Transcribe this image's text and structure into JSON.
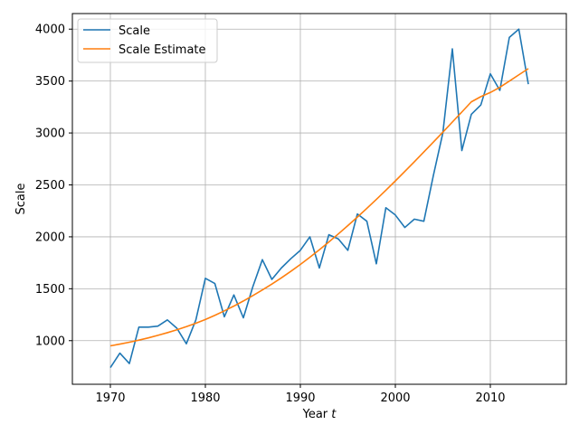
{
  "chart_data": {
    "type": "line",
    "xlabel": "Year",
    "xlabel_var": "t",
    "ylabel": "Scale",
    "xlim": [
      1966,
      2018
    ],
    "ylim": [
      580,
      4150
    ],
    "xticks": [
      1970,
      1980,
      1990,
      2000,
      2010
    ],
    "yticks": [
      1000,
      1500,
      2000,
      2500,
      3000,
      3500,
      4000
    ],
    "grid": true,
    "legend_position": "upper-left",
    "x": [
      1970,
      1971,
      1972,
      1973,
      1974,
      1975,
      1976,
      1977,
      1978,
      1979,
      1980,
      1981,
      1982,
      1983,
      1984,
      1985,
      1986,
      1987,
      1988,
      1989,
      1990,
      1991,
      1992,
      1993,
      1994,
      1995,
      1996,
      1997,
      1998,
      1999,
      2000,
      2001,
      2002,
      2003,
      2004,
      2005,
      2006,
      2007,
      2008,
      2009,
      2010,
      2011,
      2012,
      2013,
      2014
    ],
    "series": [
      {
        "name": "Scale",
        "color": "#1f77b4",
        "values": [
          740,
          880,
          780,
          1130,
          1130,
          1140,
          1200,
          1120,
          970,
          1200,
          1600,
          1550,
          1230,
          1440,
          1220,
          1520,
          1780,
          1590,
          1700,
          1790,
          1870,
          2000,
          1700,
          2020,
          1980,
          1870,
          2220,
          2150,
          1740,
          2280,
          2210,
          2090,
          2170,
          2150,
          2590,
          3000,
          3810,
          2830,
          3180,
          3270,
          3570,
          3410,
          3920,
          4000,
          3470
        ]
      },
      {
        "name": "Scale Estimate",
        "color": "#ff7f0e",
        "values": [
          950,
          967,
          985,
          1005,
          1027,
          1051,
          1077,
          1105,
          1135,
          1168,
          1204,
          1244,
          1287,
          1333,
          1382,
          1434,
          1488,
          1545,
          1605,
          1668,
          1734,
          1803,
          1875,
          1950,
          2028,
          2108,
          2190,
          2274,
          2360,
          2448,
          2538,
          2630,
          2723,
          2817,
          2912,
          3008,
          3105,
          3202,
          3300,
          3350,
          3390,
          3440,
          3500,
          3560,
          3620
        ]
      }
    ]
  }
}
